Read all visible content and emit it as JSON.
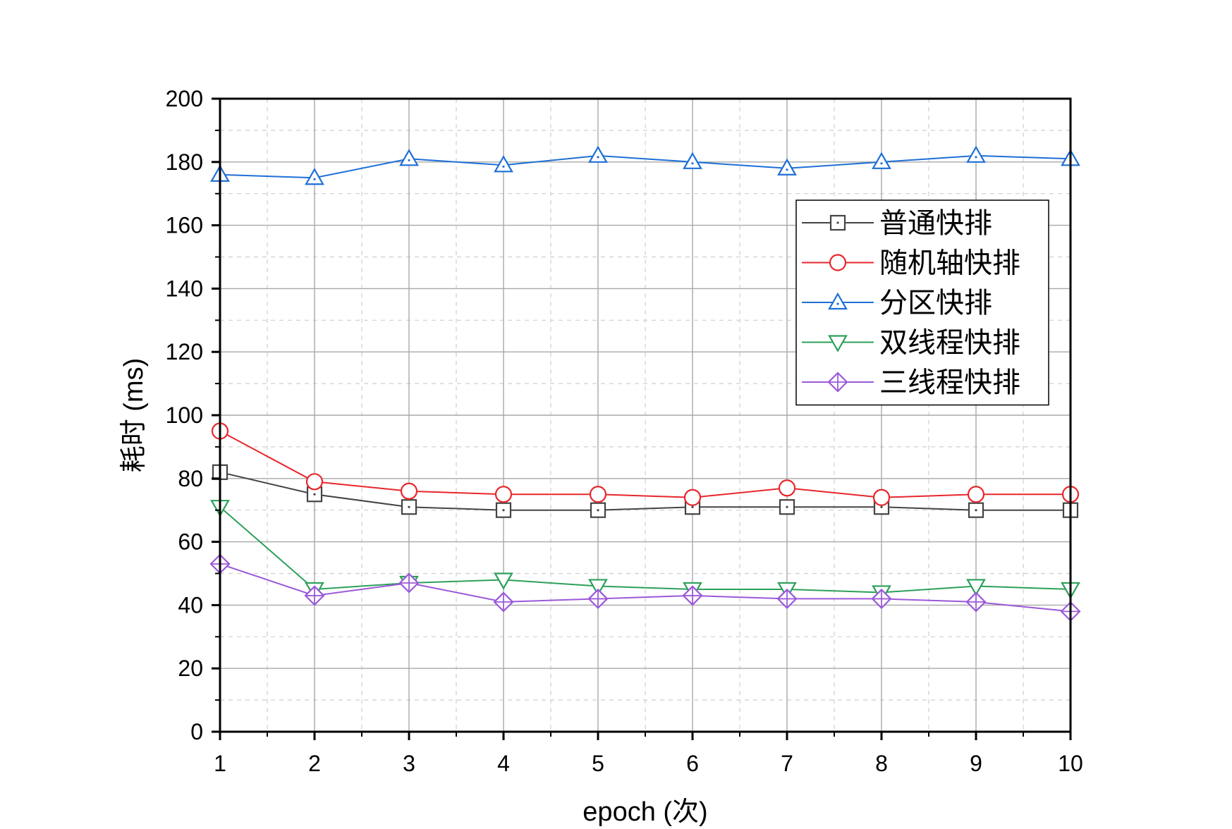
{
  "chart_data": {
    "type": "line",
    "xlabel": "epoch (次)",
    "ylabel": "耗时 (ms)",
    "xlim": [
      1,
      10
    ],
    "ylim": [
      0,
      200
    ],
    "x": [
      1,
      2,
      3,
      4,
      5,
      6,
      7,
      8,
      9,
      10
    ],
    "x_ticks": [
      "1",
      "2",
      "3",
      "4",
      "5",
      "6",
      "7",
      "8",
      "9",
      "10"
    ],
    "y_ticks": [
      "0",
      "20",
      "40",
      "60",
      "80",
      "100",
      "120",
      "140",
      "160",
      "180",
      "200"
    ],
    "grid": true,
    "legend_position": "top-right",
    "series": [
      {
        "name": "普通快排",
        "color": "#444444",
        "marker": "square",
        "values": [
          82,
          75,
          71,
          70,
          70,
          71,
          71,
          71,
          70,
          70
        ]
      },
      {
        "name": "随机轴快排",
        "color": "#e8262c",
        "marker": "circle",
        "values": [
          95,
          79,
          76,
          75,
          75,
          74,
          77,
          74,
          75,
          75
        ]
      },
      {
        "name": "分区快排",
        "color": "#1f6fd6",
        "marker": "triangle-up",
        "values": [
          176,
          175,
          181,
          179,
          182,
          180,
          178,
          180,
          182,
          181
        ]
      },
      {
        "name": "双线程快排",
        "color": "#2ca05a",
        "marker": "triangle-down",
        "values": [
          71,
          45,
          47,
          48,
          46,
          45,
          45,
          44,
          46,
          45
        ]
      },
      {
        "name": "三线程快排",
        "color": "#9b59d9",
        "marker": "diamond",
        "values": [
          53,
          43,
          47,
          41,
          42,
          43,
          42,
          42,
          41,
          38
        ]
      }
    ]
  }
}
